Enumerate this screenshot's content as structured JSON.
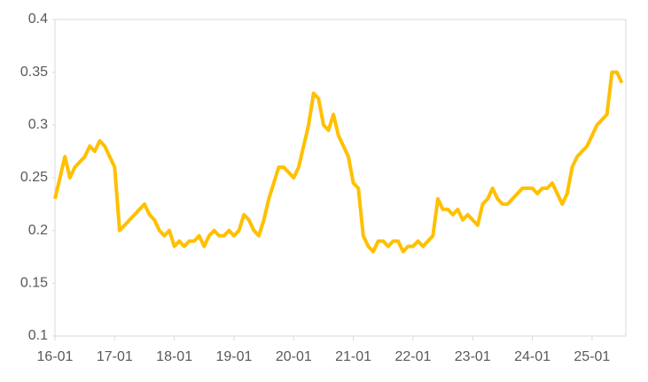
{
  "chart_data": {
    "type": "line",
    "color": "#ffc000",
    "categories": [
      "16-01",
      null,
      null,
      null,
      null,
      null,
      null,
      null,
      null,
      null,
      null,
      null,
      "17-01",
      null,
      null,
      null,
      null,
      null,
      null,
      null,
      null,
      null,
      null,
      null,
      "18-01",
      null,
      null,
      null,
      null,
      null,
      null,
      null,
      null,
      null,
      null,
      null,
      "19-01",
      null,
      null,
      null,
      null,
      null,
      null,
      null,
      null,
      null,
      null,
      null,
      "20-01",
      null,
      null,
      null,
      null,
      null,
      null,
      null,
      null,
      null,
      null,
      null,
      "21-01",
      null,
      null,
      null,
      null,
      null,
      null,
      null,
      null,
      null,
      null,
      null,
      "22-01",
      null,
      null,
      null,
      null,
      null,
      null,
      null,
      null,
      null,
      null,
      null,
      "23-01",
      null,
      null,
      null,
      null,
      null,
      null,
      null,
      null,
      null,
      null,
      null,
      "24-01",
      null,
      null,
      null,
      null,
      null,
      null,
      null,
      null,
      null,
      null,
      null,
      "25-01",
      null,
      null,
      null,
      null,
      null,
      null
    ],
    "values": [
      0.23,
      0.25,
      0.27,
      0.25,
      0.26,
      0.265,
      0.27,
      0.28,
      0.275,
      0.285,
      0.28,
      0.27,
      0.26,
      0.2,
      0.205,
      0.21,
      0.215,
      0.22,
      0.225,
      0.215,
      0.21,
      0.2,
      0.195,
      0.2,
      0.185,
      0.19,
      0.185,
      0.19,
      0.19,
      0.195,
      0.185,
      0.195,
      0.2,
      0.195,
      0.195,
      0.2,
      0.195,
      0.2,
      0.215,
      0.21,
      0.2,
      0.195,
      0.21,
      0.23,
      0.245,
      0.26,
      0.26,
      0.255,
      0.25,
      0.26,
      0.28,
      0.3,
      0.33,
      0.325,
      0.3,
      0.295,
      0.31,
      0.29,
      0.28,
      0.27,
      0.245,
      0.24,
      0.195,
      0.185,
      0.18,
      0.19,
      0.19,
      0.185,
      0.19,
      0.19,
      0.18,
      0.185,
      0.185,
      0.19,
      0.185,
      0.19,
      0.195,
      0.23,
      0.22,
      0.22,
      0.215,
      0.22,
      0.21,
      0.215,
      0.21,
      0.205,
      0.225,
      0.23,
      0.24,
      0.23,
      0.225,
      0.225,
      0.23,
      0.235,
      0.24,
      0.24,
      0.24,
      0.235,
      0.24,
      0.24,
      0.245,
      0.235,
      0.225,
      0.235,
      0.26,
      0.27,
      0.275,
      0.28,
      0.29,
      0.3,
      0.305,
      0.31,
      0.35,
      0.35,
      0.34
    ],
    "ylim": [
      0.1,
      0.4
    ],
    "yticks": [
      0.1,
      0.15,
      0.2,
      0.25,
      0.3,
      0.35,
      0.4
    ]
  }
}
